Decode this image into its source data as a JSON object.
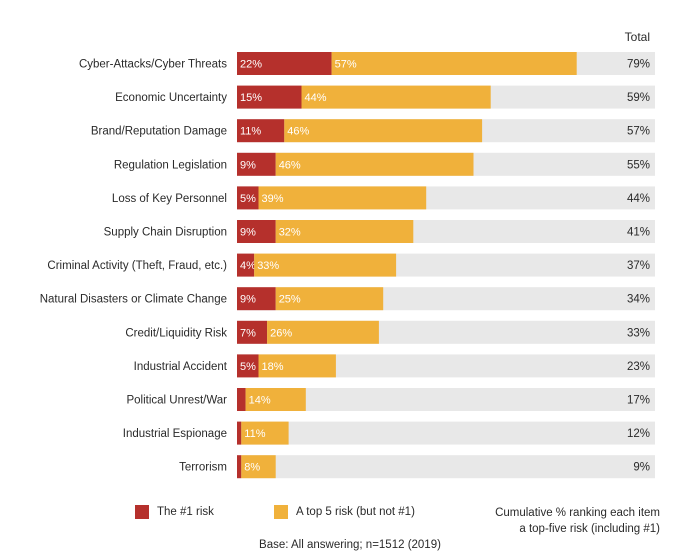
{
  "chart_data": {
    "type": "bar",
    "orientation": "horizontal",
    "stacked": true,
    "total_header": "Total",
    "categories": [
      "Cyber-Attacks/Cyber Threats",
      "Economic Uncertainty",
      "Brand/Reputation Damage",
      "Regulation Legislation",
      "Loss of Key Personnel",
      "Supply Chain Disruption",
      "Criminal Activity (Theft, Fraud, etc.)",
      "Natural Disasters or Climate Change",
      "Credit/Liquidity Risk",
      "Industrial Accident",
      "Political Unrest/War",
      "Industrial Espionage",
      "Terrorism"
    ],
    "series": [
      {
        "name": "The #1 risk",
        "color": "#b5302c",
        "values": [
          22,
          15,
          11,
          9,
          5,
          9,
          4,
          9,
          7,
          5,
          2,
          1,
          1
        ],
        "labels": [
          "22%",
          "15%",
          "11%",
          "9%",
          "5%",
          "9%",
          "4%",
          "9%",
          "7%",
          "5%",
          "",
          "",
          ""
        ]
      },
      {
        "name": "A top 5 risk (but not #1)",
        "color": "#f0b13b",
        "values": [
          57,
          44,
          46,
          46,
          39,
          32,
          33,
          25,
          26,
          18,
          14,
          11,
          8
        ],
        "labels": [
          "57%",
          "44%",
          "46%",
          "46%",
          "39%",
          "32%",
          "33%",
          "25%",
          "26%",
          "18%",
          "14%",
          "11%",
          "8%"
        ]
      }
    ],
    "totals": [
      "79%",
      "59%",
      "57%",
      "55%",
      "44%",
      "41%",
      "37%",
      "34%",
      "33%",
      "23%",
      "17%",
      "12%",
      "9%"
    ],
    "background_track_color": "#e8e8e8",
    "xlim": [
      0,
      100
    ],
    "grid": false,
    "legend_position": "bottom"
  },
  "legend": {
    "top1": "The #1 risk",
    "top5": "A top 5 risk (but not #1)",
    "cumulative_line1": "Cumulative % ranking each item",
    "cumulative_line2": "a top-five risk (including #1)"
  },
  "footnote": "Base: All answering; n=1512 (2019)"
}
